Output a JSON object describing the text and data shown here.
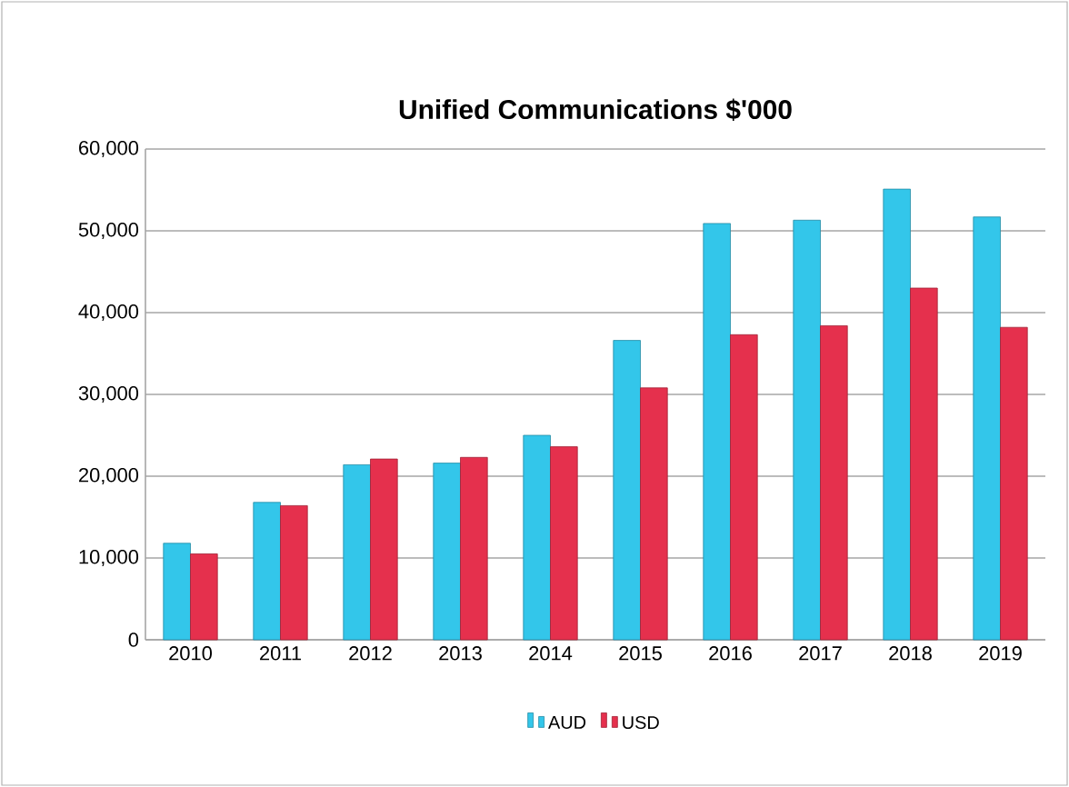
{
  "chart_data": {
    "type": "bar",
    "title": "Unified Communications  $'000",
    "categories": [
      "2010",
      "2011",
      "2012",
      "2013",
      "2014",
      "2015",
      "2016",
      "2017",
      "2018",
      "2019"
    ],
    "series": [
      {
        "name": "AUD",
        "color": "#33c6ea",
        "values": [
          11800,
          16800,
          21400,
          21600,
          25000,
          36600,
          50900,
          51300,
          55100,
          51700
        ]
      },
      {
        "name": "USD",
        "color": "#e5304d",
        "values": [
          10500,
          16400,
          22100,
          22300,
          23600,
          30800,
          37300,
          38400,
          43000,
          38200
        ]
      }
    ],
    "ylim": [
      0,
      60000
    ],
    "yticks": [
      {
        "value": 0,
        "label": "0"
      },
      {
        "value": 10000,
        "label": "10,000"
      },
      {
        "value": 20000,
        "label": "20,000"
      },
      {
        "value": 30000,
        "label": "30,000"
      },
      {
        "value": 40000,
        "label": "40,000"
      },
      {
        "value": 50000,
        "label": "50,000"
      },
      {
        "value": 60000,
        "label": "60,000"
      }
    ],
    "grid": "y",
    "legend": "bottom"
  }
}
